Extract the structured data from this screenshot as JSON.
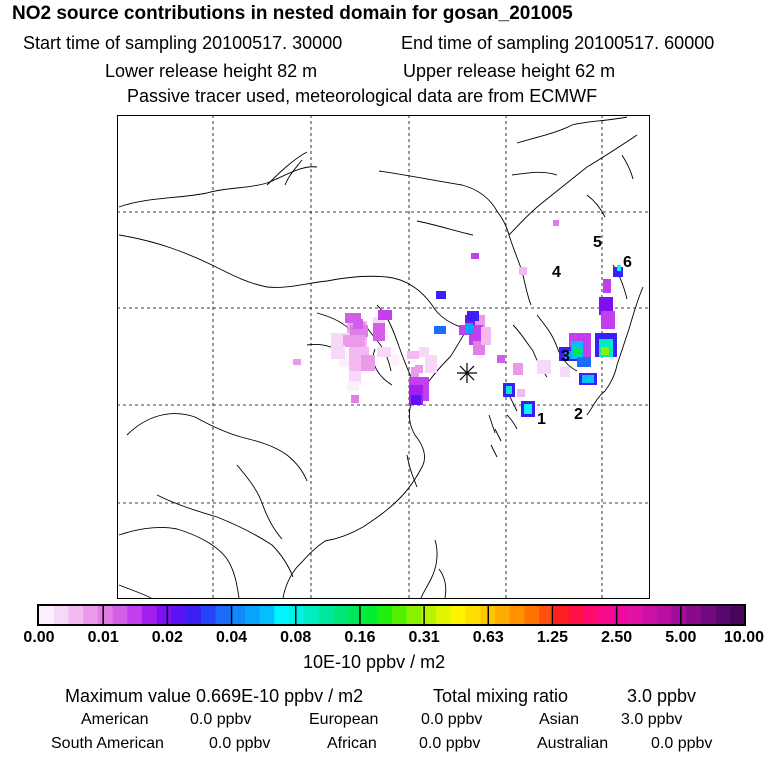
{
  "header": {
    "title": "NO2 source contributions in nested domain for gosan_201005",
    "start_time": "Start time of sampling 20100517. 30000",
    "end_time": "End time of sampling 20100517. 60000",
    "lower_release": "Lower release height   82 m",
    "upper_release": "Upper release height   62 m",
    "tracer_note": "Passive tracer used, meteorological data are from ECMWF"
  },
  "map": {
    "site_marker": "gosan-station-asterisk",
    "labels": [
      "1",
      "2",
      "3",
      "4",
      "5",
      "6"
    ]
  },
  "legend": {
    "ticks": [
      "0.00",
      "0.01",
      "0.02",
      "0.04",
      "0.08",
      "0.16",
      "0.31",
      "0.63",
      "1.25",
      "2.50",
      "5.00",
      "10.00"
    ],
    "colors": [
      "#fdf0fd",
      "#f8d8f8",
      "#f2b9f2",
      "#eb9aeb",
      "#e07de6",
      "#d35fe9",
      "#c13fec",
      "#a51ef0",
      "#7f10f2",
      "#5c14f4",
      "#3a1ff6",
      "#2544f8",
      "#1b6cf9",
      "#1188fb",
      "#0aa3fc",
      "#04bffd",
      "#00f5ff",
      "#00f0e6",
      "#00ecc5",
      "#00e8a0",
      "#00e67a",
      "#00e85a",
      "#00ee33",
      "#20f010",
      "#55f000",
      "#88f200",
      "#b8f400",
      "#e0f600",
      "#fff300",
      "#ffdf00",
      "#ffc600",
      "#ffac00",
      "#ff9000",
      "#ff7200",
      "#ff4f10",
      "#ff2020",
      "#ff1045",
      "#ff0a6e",
      "#f80a8c",
      "#ee0aa0",
      "#e012a8",
      "#cc10a5",
      "#b80fa0",
      "#a00d98",
      "#880b8c",
      "#700a7e",
      "#5a086e",
      "#45065c"
    ],
    "units": "10E-10 ppbv / m2"
  },
  "summary": {
    "max_value": "Maximum value  0.669E-10 ppbv / m2",
    "total_label": "Total mixing ratio",
    "total_value": "3.0 ppbv",
    "regions": [
      {
        "name": "American",
        "value": "0.0 ppbv"
      },
      {
        "name": "European",
        "value": "0.0 ppbv"
      },
      {
        "name": "Asian",
        "value": "3.0 ppbv"
      },
      {
        "name": "South American",
        "value": "0.0 ppbv"
      },
      {
        "name": "African",
        "value": "0.0 ppbv"
      },
      {
        "name": "Australian",
        "value": "0.0 ppbv"
      }
    ]
  }
}
